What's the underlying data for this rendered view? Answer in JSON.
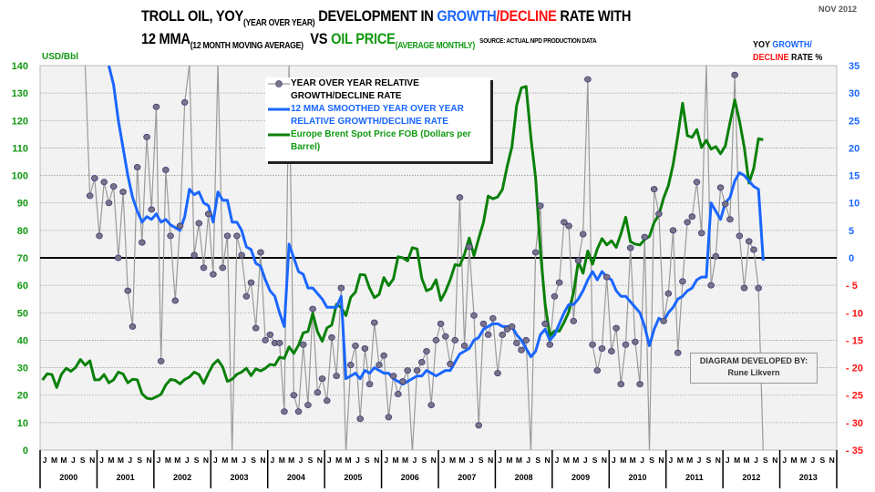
{
  "header": {
    "title_line1": {
      "a": "TROLL OIL, YOY",
      "sub": "(YEAR OVER YEAR)",
      "b": " DEVELOPMENT IN ",
      "growth": "GROWTH",
      "slash": "/",
      "decline": "DECLINE",
      "c": " RATE WITH"
    },
    "title_line2": {
      "a": "12 MMA",
      "sub": "(12 MONTH MOVING AVERAGE)",
      "b": "  VS ",
      "oil": "OIL PRICE",
      "oil_sub": "(AVERAGE MONTHLY)",
      "source": "SOURCE: ACTUAL NPD PRODUCTION DATA"
    },
    "date": "NOV 2012"
  },
  "axis_labels": {
    "left": "USD/Bbl",
    "right": {
      "a": "YOY ",
      "growth": "GROWTH/",
      "decline": "DECLINE",
      "b": " RATE %"
    }
  },
  "credit": {
    "line1": "DIAGRAM DEVELOPED BY:",
    "line2": "Rune Likvern"
  },
  "colors": {
    "yoy": "#7a7487",
    "mma": "#1a66ff",
    "brent": "#0a800a",
    "positive": "#1a66ff",
    "negative": "#ff1010",
    "left_axis": "#119911"
  },
  "chart_data": {
    "type": "line",
    "legend": [
      "YEAR OVER YEAR RELATIVE GROWTH/DECLINE RATE",
      "12 MMA SMOOTHED YEAR OVER YEAR RELATIVE GROWTH/DECLINE RATE",
      "Europe Brent Spot Price FOB (Dollars per Barrel)"
    ],
    "legend_placement": "top-center",
    "x_start": "2000-01",
    "years": [
      "2000",
      "2001",
      "2002",
      "2003",
      "2004",
      "2005",
      "2006",
      "2007",
      "2008",
      "2009",
      "2010",
      "2011",
      "2012",
      "2013"
    ],
    "month_labels": [
      "J",
      "M",
      "M",
      "J",
      "S",
      "N"
    ],
    "left_axis": {
      "label": "USD/Bbl",
      "range": [
        0,
        140
      ],
      "ticks": [
        0,
        10,
        20,
        30,
        40,
        50,
        60,
        70,
        80,
        90,
        100,
        110,
        120,
        130,
        140
      ]
    },
    "right_axis": {
      "label": "YOY GROWTH/DECLINE RATE %",
      "range": [
        -35,
        35
      ],
      "ticks": [
        35,
        30,
        25,
        20,
        15,
        10,
        5,
        0,
        -5,
        -10,
        -15,
        -20,
        -25,
        -30,
        -35
      ]
    },
    "series": [
      {
        "name": "YEAR OVER YEAR RELATIVE GROWTH/DECLINE RATE",
        "axis": "right",
        "start_month_index": 9,
        "values": [
          50,
          11.3,
          14.5,
          4,
          13.8,
          10,
          13,
          0,
          12,
          -6,
          -12.5,
          16.5,
          2.8,
          22,
          8.8,
          27.5,
          -18.8,
          16,
          4,
          -7.8,
          5.8,
          28.3,
          65,
          0.5,
          6.3,
          -1.8,
          8,
          -3,
          46,
          -1.8,
          4,
          -60,
          4,
          0.5,
          -7,
          -4.5,
          -12.8,
          1,
          -15,
          -14,
          -15.5,
          -15.5,
          -28,
          65,
          -25,
          -28,
          -15.8,
          -26.8,
          -9.3,
          -24.5,
          -22,
          -26,
          -14.5,
          -21.5,
          -5.5,
          -55,
          -19.5,
          -16,
          -29.3,
          -16.5,
          -23,
          -11.8,
          -19.5,
          -17.8,
          -29,
          -21.5,
          -24.8,
          -22.5,
          -20.5,
          -40,
          -20.5,
          -19,
          -17,
          -26.8,
          -15,
          -12,
          -14.3,
          -19.3,
          -15,
          11,
          -16,
          2,
          -10.5,
          -30.5,
          -12,
          -14,
          -11,
          -21,
          -14,
          -13,
          -12.5,
          -15.5,
          -16.8,
          -15,
          -60,
          1,
          9.5,
          -12,
          -15.8,
          -7,
          -4.5,
          6.5,
          5.8,
          -11.5,
          -0.5,
          4.3,
          32.5,
          -15.8,
          -20.5,
          -16.5,
          -3.5,
          -17,
          -12.8,
          -23,
          -15.8,
          1.8,
          -15.3,
          -23,
          3.8,
          -45,
          12.5,
          8,
          -11.5,
          -6.5,
          5,
          -17.3,
          -4.3,
          6.5,
          7.5,
          13.8,
          4.5,
          65,
          -5,
          0.3,
          12.8,
          9.8,
          7,
          33.3,
          4,
          -5.5,
          3,
          1.5,
          -5.5,
          -60
        ]
      },
      {
        "name": "12 MMA SMOOTHED YEAR OVER YEAR RELATIVE GROWTH/DECLINE RATE",
        "axis": "right",
        "start_month_index": 14,
        "values": [
          35,
          31.5,
          25,
          20,
          15,
          11,
          8.5,
          6.5,
          7.5,
          7,
          8,
          6.5,
          7,
          6,
          5.5,
          5,
          7.5,
          12.5,
          11.5,
          12,
          10,
          9.5,
          6.5,
          12,
          10.5,
          10.5,
          6.5,
          6.5,
          5,
          2,
          1.5,
          -1,
          -1.5,
          -4,
          -6,
          -7,
          -10,
          -12.5,
          2.5,
          0,
          -2.5,
          -3,
          -5.5,
          -5.5,
          -6.5,
          -7.5,
          -9,
          -9,
          -9,
          -7,
          -22,
          -21.5,
          -21,
          -22,
          -20.5,
          -21,
          -20,
          -20.5,
          -21,
          -21,
          -22,
          -22.5,
          -23,
          -22.5,
          -22,
          -21.5,
          -21.5,
          -20.5,
          -21,
          -21.5,
          -21,
          -20.5,
          -20.5,
          -19,
          -17.5,
          -17,
          -16.5,
          -15,
          -14.5,
          -13,
          -12.5,
          -12,
          -12,
          -12.5,
          -12.5,
          -12.5,
          -14,
          -15,
          -16.5,
          -18,
          -17,
          -14,
          -13,
          -15,
          -14,
          -12,
          -10,
          -8.5,
          -8.5,
          -7.5,
          -6,
          -4,
          -2.5,
          -4,
          -2.5,
          -3.5,
          -4,
          -6,
          -7,
          -7,
          -8,
          -9,
          -10,
          -12.5,
          -16,
          -13,
          -11,
          -11.5,
          -10,
          -9,
          -7.5,
          -7,
          -6,
          -5.5,
          -4,
          -3.5,
          -3.5,
          10,
          8.5,
          7,
          10,
          11,
          14,
          15.5,
          15,
          14,
          13,
          12.5,
          -0.5
        ]
      },
      {
        "name": "Europe Brent Spot Price FOB (Dollars per Barrel)",
        "axis": "left",
        "start_month_index": 0,
        "values": [
          25.5,
          27.8,
          27.5,
          22.8,
          27.6,
          29.8,
          28.7,
          30.1,
          33.0,
          30.9,
          32.5,
          25.6,
          25.6,
          27.5,
          24.5,
          25.6,
          28.4,
          27.7,
          24.5,
          25.8,
          25.6,
          20.5,
          18.9,
          18.6,
          19.4,
          20.3,
          23.7,
          25.7,
          25.4,
          24.1,
          25.7,
          26.6,
          28.4,
          27.5,
          24.3,
          28.0,
          31.2,
          32.8,
          30.3,
          25.0,
          25.8,
          27.6,
          28.4,
          29.8,
          27.1,
          29.6,
          28.8,
          29.8,
          31.2,
          30.9,
          33.8,
          33.4,
          37.6,
          35.2,
          38.2,
          42.7,
          43.2,
          49.8,
          43.1,
          39.6,
          44.5,
          45.5,
          53.1,
          51.9,
          49.0,
          55.6,
          57.5,
          63.9,
          63.8,
          58.9,
          55.5,
          56.7,
          62.8,
          59.9,
          62.3,
          70.4,
          70.0,
          68.9,
          73.7,
          73.2,
          62.5,
          58.0,
          58.8,
          62.0,
          54.5,
          57.8,
          62.1,
          67.5,
          67.2,
          71.3,
          77.2,
          70.8,
          77.1,
          82.9,
          92.5,
          91.5,
          92.2,
          94.9,
          103.3,
          110.4,
          125.5,
          131.9,
          132.4,
          113.9,
          99.1,
          72.8,
          53.2,
          41.6,
          43.4,
          43.3,
          46.5,
          50.3,
          57.4,
          68.6,
          64.4,
          72.5,
          67.7,
          73.2,
          77.0,
          74.7,
          76.2,
          73.8,
          78.8,
          84.8,
          75.9,
          75.0,
          74.7,
          76.7,
          77.8,
          82.9,
          85.7,
          91.8,
          96.3,
          104.0,
          114.6,
          126.3,
          114.5,
          113.9,
          116.7,
          110.2,
          112.8,
          109.6,
          110.5,
          107.9,
          110.7,
          119.3,
          127.5,
          119.8,
          110.3,
          97.2,
          102.6,
          113.4,
          113.0
        ]
      }
    ],
    "reference_line": {
      "axis": "right",
      "value": 0
    }
  }
}
